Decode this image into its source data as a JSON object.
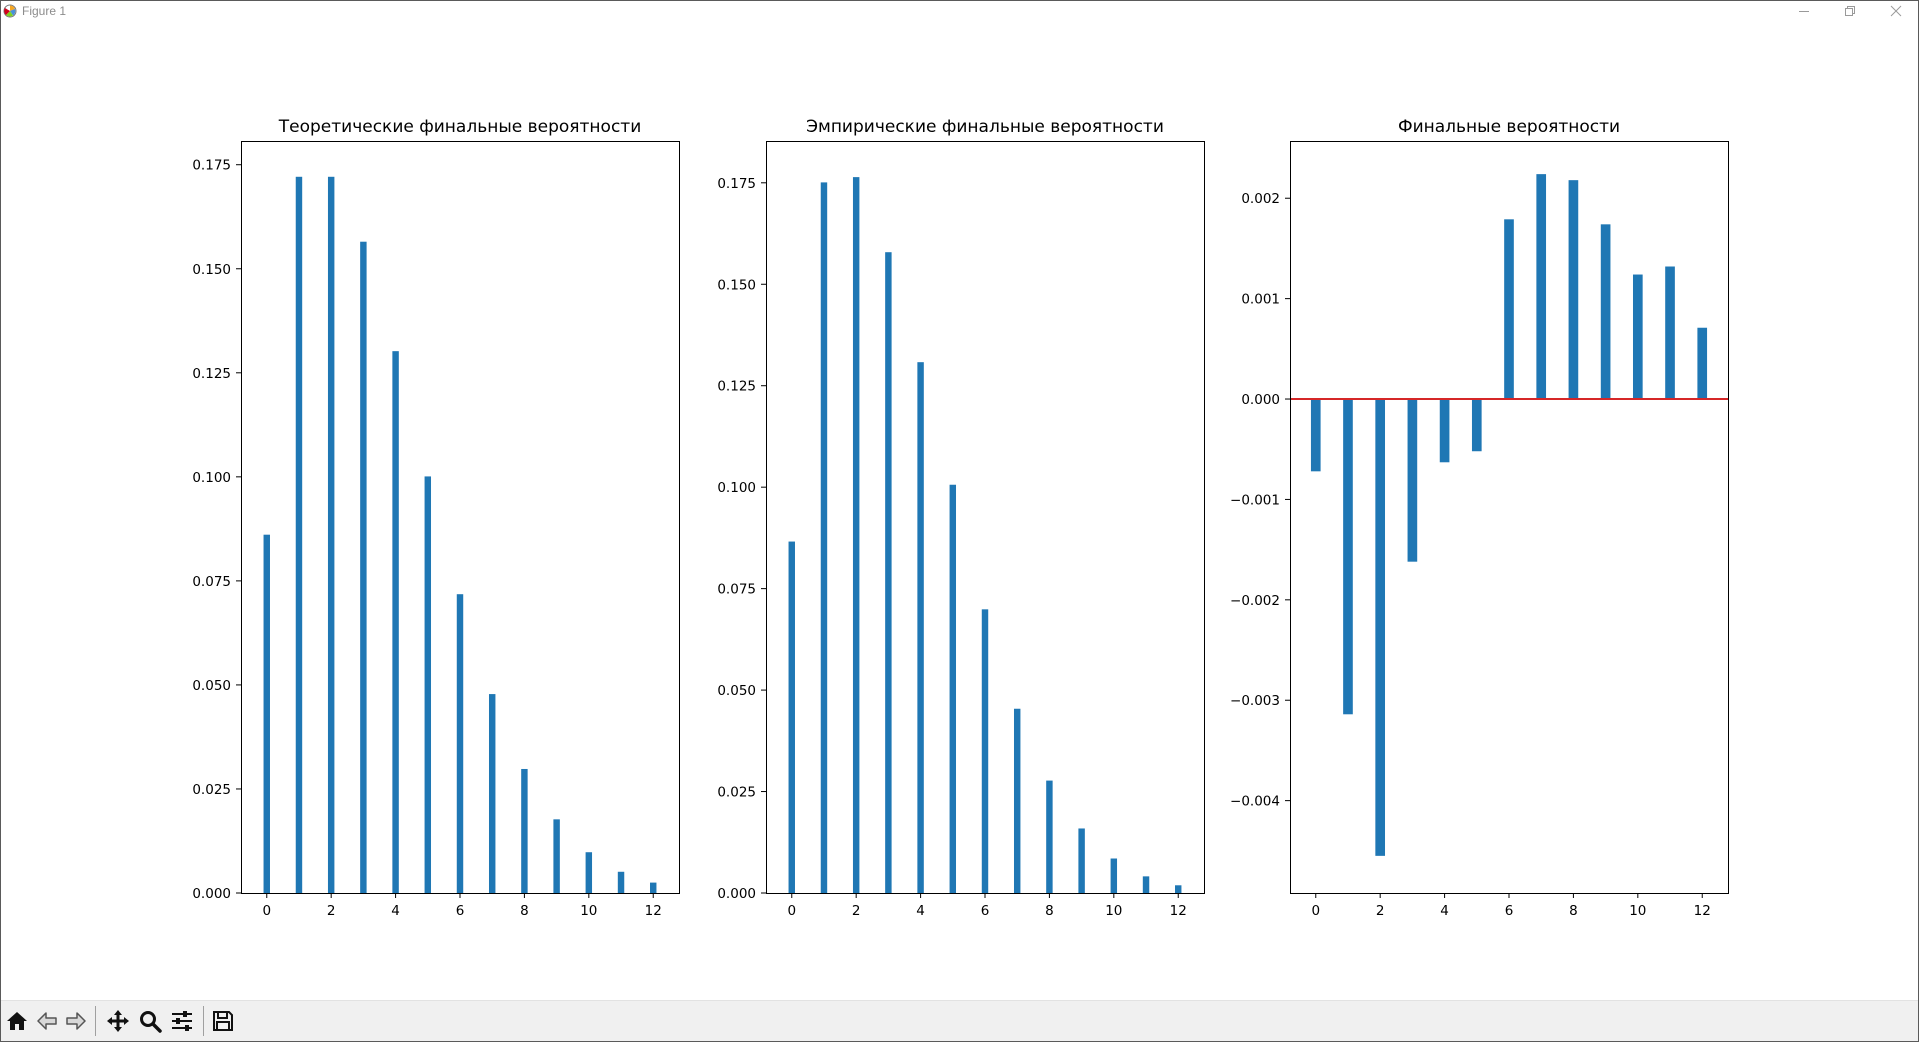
{
  "window": {
    "title": "Figure 1",
    "icons": [
      "matplotlib-logo-icon",
      "minimize-icon",
      "maximize-icon",
      "close-icon"
    ]
  },
  "toolbar": {
    "icons": [
      "home-icon",
      "back-arrow-icon",
      "forward-arrow-icon",
      "pan-icon",
      "zoom-icon",
      "configure-subplots-icon",
      "save-icon"
    ]
  },
  "colors": {
    "bar": "#1f77b4",
    "zero_line": "#d62728",
    "axes": "#000000"
  },
  "chart_data": [
    {
      "type": "bar",
      "title": "Теоретические финальные вероятности",
      "x": [
        0,
        1,
        2,
        3,
        4,
        5,
        6,
        7,
        8,
        9,
        10,
        11,
        12
      ],
      "values": [
        0.0861,
        0.1721,
        0.1721,
        0.1565,
        0.1302,
        0.1001,
        0.0718,
        0.0478,
        0.0298,
        0.0177,
        0.0098,
        0.0051,
        0.0025
      ],
      "xticks": [
        "0",
        "2",
        "4",
        "6",
        "8",
        "10",
        "12"
      ],
      "yticks": [
        "0.000",
        "0.025",
        "0.050",
        "0.075",
        "0.100",
        "0.125",
        "0.150",
        "0.175"
      ],
      "xlim": [
        -0.8,
        12.8
      ],
      "ylim": [
        0,
        0.1807
      ],
      "bar_width": 0.2,
      "zero_line": false
    },
    {
      "type": "bar",
      "title": "Эмпирические финальные вероятности",
      "x": [
        0,
        1,
        2,
        3,
        4,
        5,
        6,
        7,
        8,
        9,
        10,
        11,
        12
      ],
      "values": [
        0.0866,
        0.1751,
        0.1764,
        0.1579,
        0.1308,
        0.1006,
        0.0699,
        0.0454,
        0.0277,
        0.0159,
        0.0085,
        0.0041,
        0.0019
      ],
      "xticks": [
        "0",
        "2",
        "4",
        "6",
        "8",
        "10",
        "12"
      ],
      "yticks": [
        "0.000",
        "0.025",
        "0.050",
        "0.075",
        "0.100",
        "0.125",
        "0.150",
        "0.175"
      ],
      "xlim": [
        -0.8,
        12.8
      ],
      "ylim": [
        0,
        0.1853
      ],
      "bar_width": 0.2,
      "zero_line": false
    },
    {
      "type": "bar",
      "title": "Финальные вероятности",
      "x": [
        0,
        1,
        2,
        3,
        4,
        5,
        6,
        7,
        8,
        9,
        10,
        11,
        12
      ],
      "values": [
        -0.00072,
        -0.00314,
        -0.00455,
        -0.00162,
        -0.00063,
        -0.00052,
        0.00179,
        0.00224,
        0.00218,
        0.00174,
        0.00124,
        0.00132,
        0.00071
      ],
      "xticks": [
        "0",
        "2",
        "4",
        "6",
        "8",
        "10",
        "12"
      ],
      "yticks": [
        "−0.004",
        "−0.003",
        "−0.002",
        "−0.001",
        "0.000",
        "0.001",
        "0.002"
      ],
      "ytick_values": [
        -0.004,
        -0.003,
        -0.002,
        -0.001,
        0,
        0.001,
        0.002
      ],
      "xlim": [
        -0.8,
        12.8
      ],
      "ylim": [
        -0.00492,
        0.00257
      ],
      "bar_width": 0.3,
      "zero_line": true
    }
  ]
}
